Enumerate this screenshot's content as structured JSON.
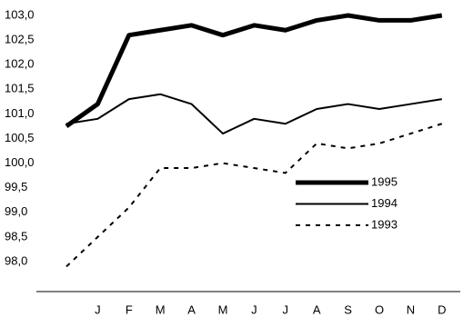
{
  "chart_data": {
    "type": "line",
    "categories": [
      null,
      "J",
      "F",
      "M",
      "A",
      "M",
      "J",
      "J",
      "A",
      "S",
      "O",
      "N",
      "D"
    ],
    "series": [
      {
        "name": "1995",
        "color": "#000000",
        "line_width": 5,
        "dash": "none",
        "values": [
          100.75,
          101.2,
          102.6,
          102.7,
          102.8,
          102.6,
          102.8,
          102.7,
          102.9,
          103.0,
          102.9,
          102.9,
          103.0
        ]
      },
      {
        "name": "1994",
        "color": "#000000",
        "line_width": 2,
        "dash": "none",
        "values": [
          100.8,
          100.9,
          101.3,
          101.4,
          101.2,
          100.6,
          100.9,
          100.8,
          101.1,
          101.2,
          101.1,
          101.2,
          101.3
        ]
      },
      {
        "name": "1993",
        "color": "#000000",
        "line_width": 2,
        "dash": "5 6",
        "values": [
          97.9,
          98.5,
          99.1,
          99.9,
          99.9,
          100.0,
          99.9,
          99.8,
          100.4,
          100.3,
          100.4,
          100.6,
          100.8
        ]
      }
    ],
    "ylim": [
      98,
      103
    ],
    "yticks": [
      {
        "value": 98,
        "label": "98,0"
      },
      {
        "value": 98.5,
        "label": "98,5"
      },
      {
        "value": 99,
        "label": "99,0"
      },
      {
        "value": 99.5,
        "label": "99,5"
      },
      {
        "value": 100,
        "label": "100,0"
      },
      {
        "value": 100.5,
        "label": "100,5"
      },
      {
        "value": 101,
        "label": "101,0"
      },
      {
        "value": 101.5,
        "label": "101,5"
      },
      {
        "value": 102,
        "label": "102,0"
      },
      {
        "value": 102.5,
        "label": "102,5"
      },
      {
        "value": 103,
        "label": "103,0"
      }
    ],
    "grid": false
  }
}
